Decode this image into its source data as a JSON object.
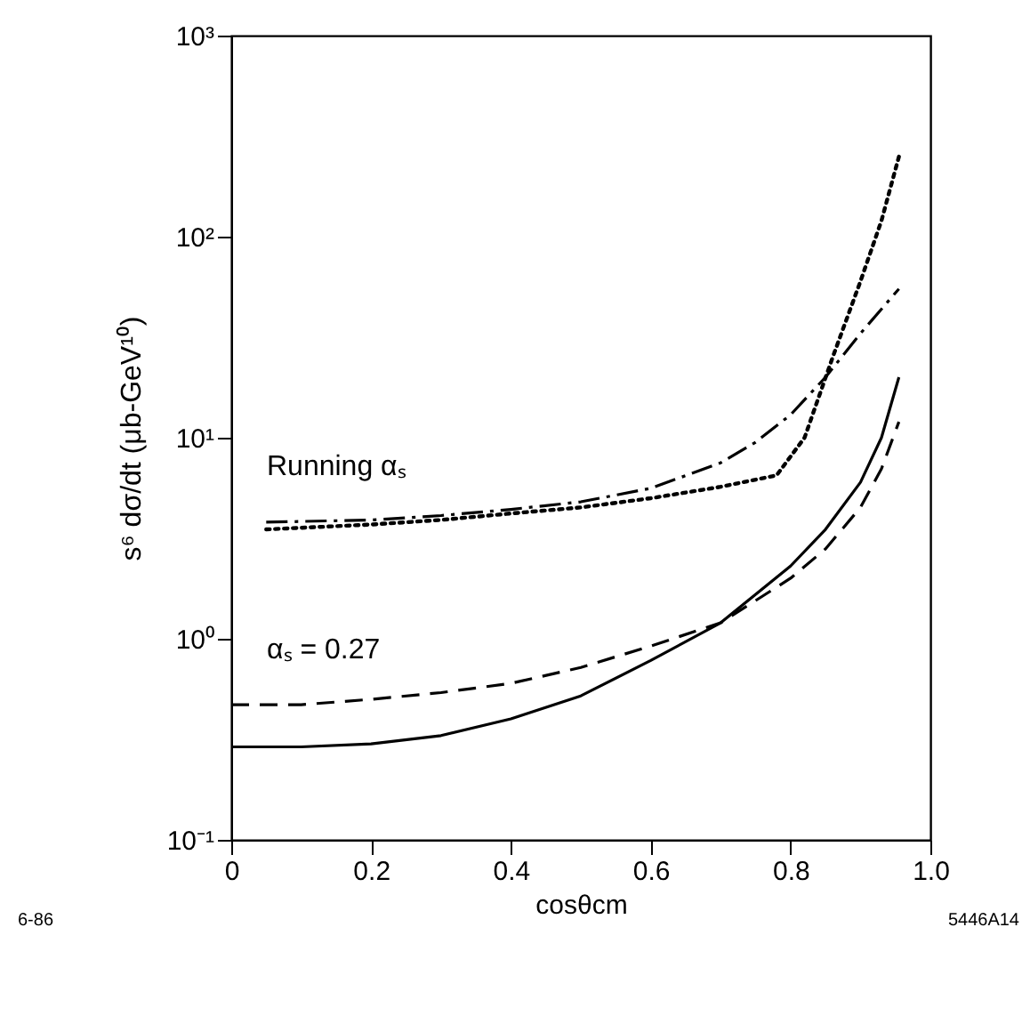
{
  "chart_data": {
    "type": "line",
    "xlabel": "cosθcm",
    "ylabel": "s⁶ dσ/dt   (μb-GeV¹⁰)",
    "xlim": [
      0,
      1.0
    ],
    "xticks": [
      0,
      0.2,
      0.4,
      0.6,
      0.8,
      {
        "value": 1.0,
        "label": "1.0"
      }
    ],
    "ylim": [
      0.1,
      1000
    ],
    "yticks": [
      {
        "value": 0.1,
        "label": "10⁻¹"
      },
      {
        "value": 1,
        "label": "10⁰"
      },
      {
        "value": 10,
        "label": "10¹"
      },
      {
        "value": 100,
        "label": "10²"
      },
      {
        "value": 1000,
        "label": "10³"
      }
    ],
    "log": true,
    "grid": false,
    "marker": "none",
    "series": [
      {
        "color": "#000000",
        "line_style": "solid",
        "x": [
          0.0,
          0.1,
          0.2,
          0.3,
          0.4,
          0.5,
          0.6,
          0.7,
          0.8,
          0.85,
          0.9,
          0.93,
          0.955
        ],
        "values": [
          0.29,
          0.29,
          0.3,
          0.33,
          0.4,
          0.52,
          0.78,
          1.2,
          2.3,
          3.5,
          6,
          10,
          20
        ]
      },
      {
        "color": "#000000",
        "line_style": "dashed",
        "x": [
          0.0,
          0.1,
          0.2,
          0.3,
          0.4,
          0.5,
          0.6,
          0.7,
          0.8,
          0.85,
          0.9,
          0.93,
          0.955
        ],
        "values": [
          0.47,
          0.47,
          0.5,
          0.54,
          0.6,
          0.72,
          0.92,
          1.2,
          2.0,
          2.8,
          4.5,
          7,
          12
        ]
      },
      {
        "color": "#000000",
        "line_style": "dashdot",
        "x": [
          0.05,
          0.2,
          0.3,
          0.4,
          0.5,
          0.6,
          0.7,
          0.75,
          0.8,
          0.85,
          0.9,
          0.955
        ],
        "values": [
          3.8,
          3.9,
          4.1,
          4.4,
          4.8,
          5.6,
          7.5,
          9.5,
          13,
          20,
          33,
          55
        ]
      },
      {
        "color": "#000000",
        "line_style": "dotted",
        "x": [
          0.05,
          0.2,
          0.3,
          0.4,
          0.5,
          0.6,
          0.7,
          0.78,
          0.82,
          0.86,
          0.9,
          0.93,
          0.955
        ],
        "values": [
          3.5,
          3.7,
          3.9,
          4.2,
          4.5,
          5.0,
          5.7,
          6.5,
          10,
          25,
          60,
          120,
          250
        ]
      }
    ],
    "annotations": [
      "Running αₛ",
      "αₛ = 0.27",
      "6-86",
      "5446A14"
    ]
  }
}
